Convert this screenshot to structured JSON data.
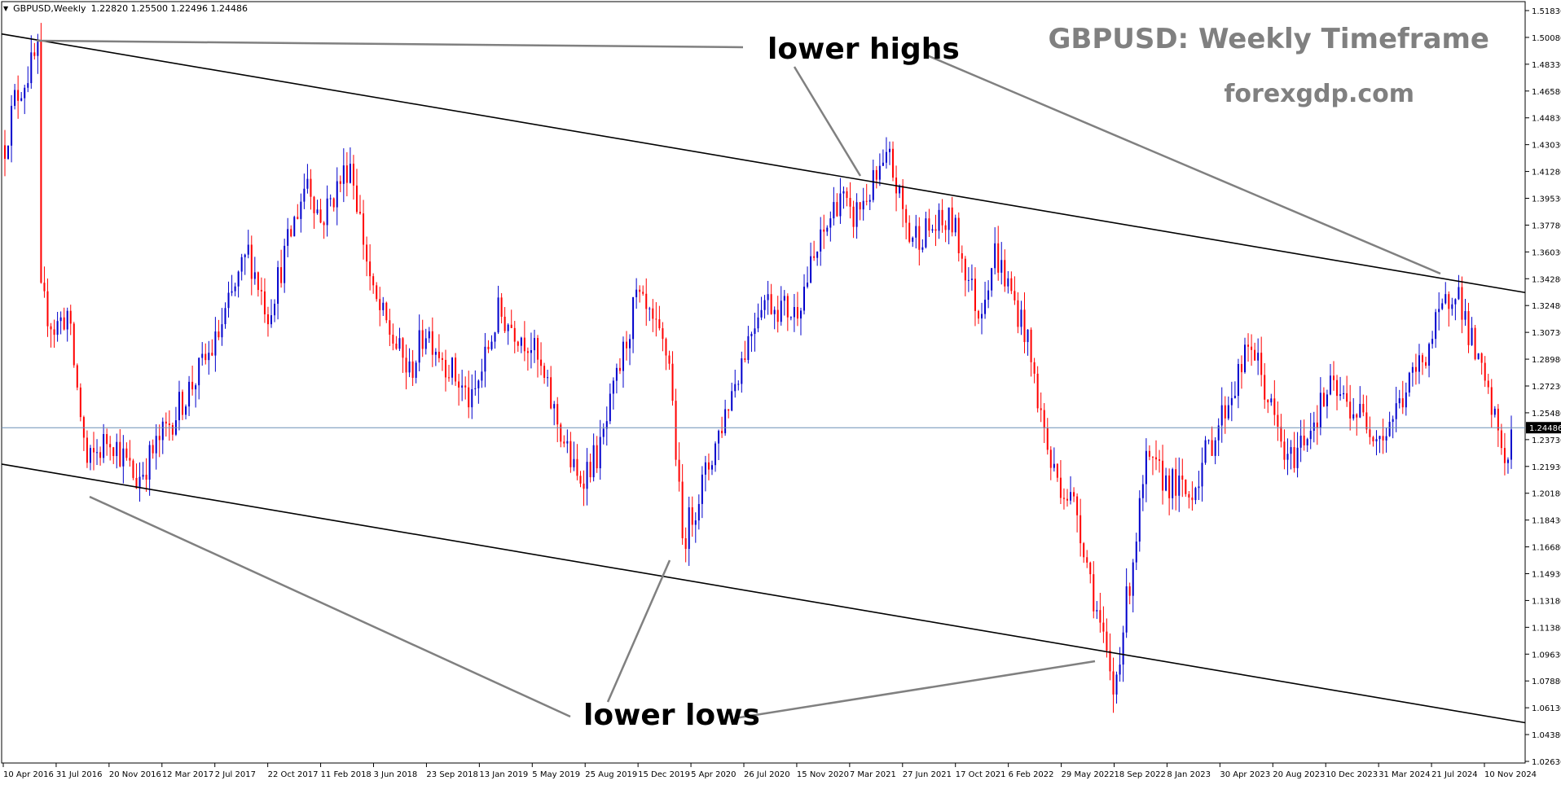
{
  "header": {
    "symbol": "GBPUSD,Weekly",
    "ohlc": "1.22820 1.25500 1.22496 1.24486"
  },
  "branding": {
    "title": "GBPUSD: Weekly Timeframe",
    "site": "forexgdp.com"
  },
  "annotations": {
    "highs": "lower highs",
    "lows": "lower lows"
  },
  "colors": {
    "bull": "#0000cc",
    "bear": "#ff0000",
    "trendline": "#000000",
    "arrow": "#808080",
    "current_price_line": "#6b8fb5"
  },
  "chart_data": {
    "type": "candlestick",
    "ylim": [
      1.0261,
      1.5183
    ],
    "y_ticks": [
      "1.51830",
      "1.50080",
      "1.48330",
      "1.46580",
      "1.44830",
      "1.43030",
      "1.41280",
      "1.39530",
      "1.37780",
      "1.36030",
      "1.34280",
      "1.32480",
      "1.30730",
      "1.28980",
      "1.27230",
      "1.25480",
      "1.23730",
      "1.21930",
      "1.20180",
      "1.18430",
      "1.16680",
      "1.14930",
      "1.13180",
      "1.11380",
      "1.09630",
      "1.07880",
      "1.06130",
      "1.04380",
      "1.02630"
    ],
    "x_labels": [
      "10 Apr 2016",
      "31 Jul 2016",
      "20 Nov 2016",
      "12 Mar 2017",
      "2 Jul 2017",
      "22 Oct 2017",
      "11 Feb 2018",
      "3 Jun 2018",
      "23 Sep 2018",
      "13 Jan 2019",
      "5 May 2019",
      "25 Aug 2019",
      "15 Dec 2019",
      "5 Apr 2020",
      "26 Jul 2020",
      "15 Nov 2020",
      "7 Mar 2021",
      "27 Jun 2021",
      "17 Oct 2021",
      "6 Feb 2022",
      "29 May 2022",
      "18 Sep 2022",
      "8 Jan 2023",
      "30 Apr 2023",
      "20 Aug 2023",
      "10 Dec 2023",
      "31 Mar 2024",
      "21 Jul 2024",
      "10 Nov 2024"
    ],
    "current_price": 1.24486,
    "current_price_label": "1.24486",
    "price_path": [
      {
        "date": "2016-04-10",
        "price": 1.43
      },
      {
        "date": "2016-05-01",
        "price": 1.46
      },
      {
        "date": "2016-06-19",
        "price": 1.49
      },
      {
        "date": "2016-06-26",
        "price": 1.33
      },
      {
        "date": "2016-07-24",
        "price": 1.31
      },
      {
        "date": "2016-08-21",
        "price": 1.32
      },
      {
        "date": "2016-10-02",
        "price": 1.22
      },
      {
        "date": "2016-11-20",
        "price": 1.24
      },
      {
        "date": "2017-01-15",
        "price": 1.21
      },
      {
        "date": "2017-03-12",
        "price": 1.24
      },
      {
        "date": "2017-07-02",
        "price": 1.3
      },
      {
        "date": "2017-09-10",
        "price": 1.36
      },
      {
        "date": "2017-10-22",
        "price": 1.32
      },
      {
        "date": "2018-01-14",
        "price": 1.41
      },
      {
        "date": "2018-02-11",
        "price": 1.38
      },
      {
        "date": "2018-04-15",
        "price": 1.42
      },
      {
        "date": "2018-06-03",
        "price": 1.33
      },
      {
        "date": "2018-08-19",
        "price": 1.28
      },
      {
        "date": "2018-09-23",
        "price": 1.31
      },
      {
        "date": "2018-12-30",
        "price": 1.26
      },
      {
        "date": "2019-02-24",
        "price": 1.32
      },
      {
        "date": "2019-05-05",
        "price": 1.3
      },
      {
        "date": "2019-08-11",
        "price": 1.21
      },
      {
        "date": "2019-09-29",
        "price": 1.23
      },
      {
        "date": "2019-12-15",
        "price": 1.33
      },
      {
        "date": "2020-02-23",
        "price": 1.29
      },
      {
        "date": "2020-03-22",
        "price": 1.17
      },
      {
        "date": "2020-05-17",
        "price": 1.22
      },
      {
        "date": "2020-07-26",
        "price": 1.29
      },
      {
        "date": "2020-09-06",
        "price": 1.33
      },
      {
        "date": "2020-11-15",
        "price": 1.32
      },
      {
        "date": "2021-02-21",
        "price": 1.4
      },
      {
        "date": "2021-03-14",
        "price": 1.38
      },
      {
        "date": "2021-06-06",
        "price": 1.42
      },
      {
        "date": "2021-07-18",
        "price": 1.37
      },
      {
        "date": "2021-10-17",
        "price": 1.38
      },
      {
        "date": "2021-12-12",
        "price": 1.32
      },
      {
        "date": "2022-01-16",
        "price": 1.36
      },
      {
        "date": "2022-03-20",
        "price": 1.31
      },
      {
        "date": "2022-05-15",
        "price": 1.22
      },
      {
        "date": "2022-07-10",
        "price": 1.19
      },
      {
        "date": "2022-09-25",
        "price": 1.07
      },
      {
        "date": "2022-12-04",
        "price": 1.22
      },
      {
        "date": "2023-03-05",
        "price": 1.2
      },
      {
        "date": "2023-07-16",
        "price": 1.3
      },
      {
        "date": "2023-10-01",
        "price": 1.22
      },
      {
        "date": "2023-12-31",
        "price": 1.27
      },
      {
        "date": "2024-04-21",
        "price": 1.24
      },
      {
        "date": "2024-07-14",
        "price": 1.29
      },
      {
        "date": "2024-09-22",
        "price": 1.34
      },
      {
        "date": "2024-10-27",
        "price": 1.3
      },
      {
        "date": "2025-01-12",
        "price": 1.22
      },
      {
        "date": "2025-01-19",
        "price": 1.2448
      }
    ],
    "trendlines": [
      {
        "name": "upper channel",
        "points": [
          {
            "date": "2016-04-10",
            "price": 1.503
          },
          {
            "date": "2025-01-19",
            "price": 1.335
          }
        ]
      },
      {
        "name": "lower channel",
        "points": [
          {
            "date": "2016-04-10",
            "price": 1.221
          },
          {
            "date": "2025-01-19",
            "price": 1.053
          }
        ]
      }
    ]
  }
}
